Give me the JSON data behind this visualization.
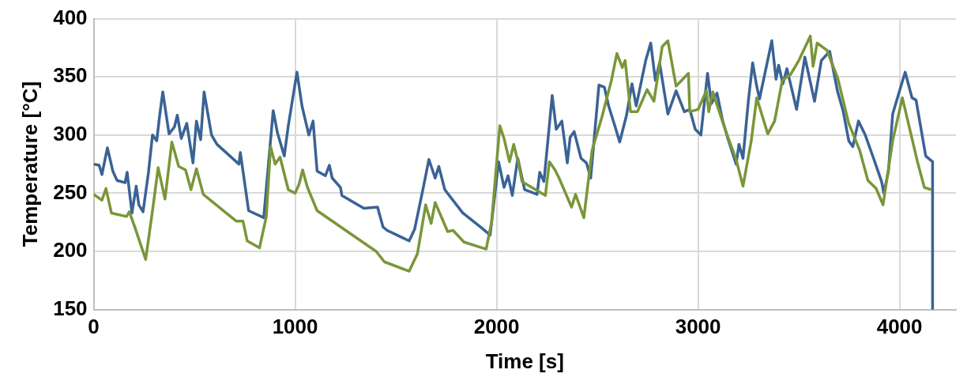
{
  "chart_data": {
    "type": "line",
    "xlabel": "Time [s]",
    "ylabel": "Temperature [°C]",
    "xlim": [
      0,
      4280
    ],
    "xticks": [
      0,
      1000,
      2000,
      3000,
      4000
    ],
    "ylim": [
      150,
      400
    ],
    "yticks": [
      150,
      200,
      250,
      300,
      350,
      400
    ],
    "grid": true,
    "legend": false,
    "marker": "none",
    "line_style": "solid",
    "series": [
      {
        "color": "#7a963a",
        "x": [
          0,
          41,
          61,
          88,
          163,
          177,
          204,
          258,
          292,
          320,
          354,
          388,
          422,
          456,
          483,
          510,
          544,
          707,
          741,
          762,
          823,
          857,
          878,
          901,
          925,
          966,
          1000,
          1020,
          1037,
          1061,
          1109,
          1402,
          1443,
          1566,
          1607,
          1648,
          1675,
          1695,
          1757,
          1784,
          1838,
          1948,
          1975,
          2016,
          2037,
          2064,
          2085,
          2112,
          2126,
          2242,
          2262,
          2290,
          2310,
          2372,
          2392,
          2433,
          2474,
          2522,
          2570,
          2597,
          2624,
          2638,
          2665,
          2699,
          2747,
          2781,
          2822,
          2850,
          2891,
          2952,
          2959,
          3000,
          3041,
          3053,
          3073,
          3134,
          3189,
          3223,
          3264,
          3291,
          3346,
          3380,
          3418,
          3459,
          3500,
          3557,
          3571,
          3591,
          3639,
          3693,
          3748,
          3802,
          3843,
          3884,
          3918,
          3966,
          4014,
          4055,
          4089,
          4123,
          4157
        ],
        "values": [
          249,
          244,
          254,
          233,
          230,
          234,
          221,
          193,
          235,
          272,
          245,
          294,
          273,
          270,
          253,
          271,
          249,
          226,
          226,
          209,
          203,
          230,
          290,
          275,
          281,
          253,
          250,
          258,
          270,
          255,
          235,
          200,
          191,
          183,
          198,
          240,
          224,
          242,
          217,
          218,
          208,
          202,
          225,
          308,
          297,
          277,
          292,
          273,
          260,
          248,
          277,
          270,
          263,
          238,
          249,
          229,
          287,
          315,
          347,
          370,
          358,
          364,
          320,
          320,
          339,
          329,
          376,
          381,
          342,
          353,
          320,
          322,
          338,
          320,
          337,
          305,
          279,
          256,
          295,
          332,
          301,
          312,
          347,
          352,
          364,
          385,
          359,
          379,
          373,
          349,
          310,
          287,
          261,
          254,
          240,
          295,
          332,
          302,
          277,
          255,
          253
        ]
      },
      {
        "color": "#3a6395",
        "x": [
          0,
          27,
          41,
          68,
          95,
          116,
          156,
          166,
          190,
          211,
          224,
          245,
          272,
          292,
          313,
          327,
          343,
          374,
          401,
          415,
          435,
          462,
          493,
          510,
          531,
          548,
          585,
          612,
          721,
          728,
          769,
          844,
          891,
          912,
          946,
          966,
          1009,
          1034,
          1068,
          1089,
          1109,
          1150,
          1170,
          1184,
          1225,
          1232,
          1341,
          1409,
          1436,
          1457,
          1566,
          1593,
          1634,
          1664,
          1695,
          1713,
          1743,
          1832,
          1920,
          1968,
          2010,
          2037,
          2057,
          2078,
          2105,
          2139,
          2201,
          2214,
          2235,
          2276,
          2296,
          2324,
          2351,
          2365,
          2385,
          2419,
          2446,
          2467,
          2508,
          2535,
          2556,
          2583,
          2611,
          2645,
          2672,
          2693,
          2740,
          2765,
          2788,
          2809,
          2850,
          2891,
          2932,
          2959,
          2986,
          3014,
          3047,
          3066,
          3094,
          3121,
          3148,
          3189,
          3203,
          3223,
          3250,
          3271,
          3291,
          3305,
          3366,
          3387,
          3400,
          3421,
          3441,
          3489,
          3530,
          3578,
          3612,
          3653,
          3693,
          3721,
          3748,
          3768,
          3796,
          3830,
          3871,
          3911,
          3922,
          3945,
          3966,
          4007,
          4028,
          4062,
          4082,
          4130,
          4164,
          4164
        ],
        "values": [
          275,
          274,
          266,
          289,
          269,
          261,
          259,
          268,
          233,
          256,
          240,
          234,
          268,
          300,
          295,
          316,
          337,
          301,
          307,
          317,
          297,
          310,
          276,
          312,
          296,
          337,
          300,
          292,
          275,
          285,
          235,
          229,
          321,
          302,
          282,
          308,
          354,
          325,
          300,
          312,
          269,
          265,
          274,
          263,
          255,
          248,
          237,
          238,
          221,
          218,
          209,
          219,
          253,
          279,
          263,
          273,
          253,
          233,
          221,
          214,
          277,
          255,
          265,
          248,
          280,
          253,
          249,
          268,
          260,
          334,
          305,
          312,
          276,
          298,
          303,
          280,
          276,
          263,
          343,
          341,
          325,
          310,
          294,
          317,
          344,
          325,
          364,
          379,
          347,
          362,
          318,
          338,
          320,
          322,
          305,
          300,
          353,
          327,
          336,
          313,
          297,
          275,
          292,
          280,
          330,
          362,
          342,
          331,
          381,
          348,
          360,
          344,
          357,
          322,
          367,
          329,
          364,
          372,
          337,
          320,
          295,
          290,
          312,
          300,
          280,
          260,
          250,
          269,
          318,
          342,
          354,
          332,
          330,
          282,
          277,
          150
        ]
      }
    ]
  }
}
